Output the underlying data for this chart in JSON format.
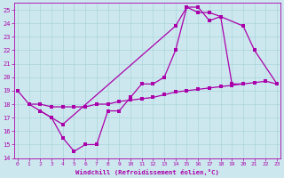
{
  "bg_color": "#cce8ee",
  "grid_color": "#aad4dc",
  "line_color": "#aa00aa",
  "xlabel": "Windchill (Refroidissement éolien,°C)",
  "xlim_min": -0.3,
  "xlim_max": 23.3,
  "ylim_min": 14,
  "ylim_max": 25.5,
  "xticks": [
    0,
    1,
    2,
    3,
    4,
    5,
    6,
    7,
    8,
    9,
    10,
    11,
    12,
    13,
    14,
    15,
    16,
    17,
    18,
    19,
    20,
    21,
    22,
    23
  ],
  "yticks": [
    14,
    15,
    16,
    17,
    18,
    19,
    20,
    21,
    22,
    23,
    24,
    25
  ],
  "line1_x": [
    0,
    1,
    2,
    3,
    4,
    5,
    6,
    7,
    8,
    9,
    10,
    11,
    12,
    13,
    14,
    15,
    16,
    17,
    18,
    19,
    20
  ],
  "line1_y": [
    19,
    18,
    17.5,
    17,
    15.5,
    14.5,
    15,
    15,
    17.5,
    17.5,
    18.5,
    19.5,
    19.5,
    20,
    22,
    25.2,
    25.2,
    24.2,
    24.5,
    19.5,
    19.5
  ],
  "line2_x": [
    1,
    2,
    3,
    4,
    5,
    6,
    7,
    8,
    9,
    10,
    11,
    12,
    13,
    14,
    15,
    16,
    17,
    18,
    19,
    20,
    21,
    22,
    23
  ],
  "line2_y": [
    18,
    18,
    17.8,
    17.8,
    17.8,
    17.8,
    18,
    18,
    18.2,
    18.3,
    18.4,
    18.5,
    18.7,
    18.9,
    19.0,
    19.1,
    19.2,
    19.3,
    19.4,
    19.5,
    19.6,
    19.7,
    19.5
  ],
  "line3_x": [
    2,
    3,
    4,
    14,
    15,
    16,
    17,
    18,
    20,
    21,
    23
  ],
  "line3_y": [
    17.5,
    17,
    16.5,
    23.8,
    25.2,
    24.8,
    24.8,
    24.5,
    23.8,
    22,
    19.5
  ]
}
